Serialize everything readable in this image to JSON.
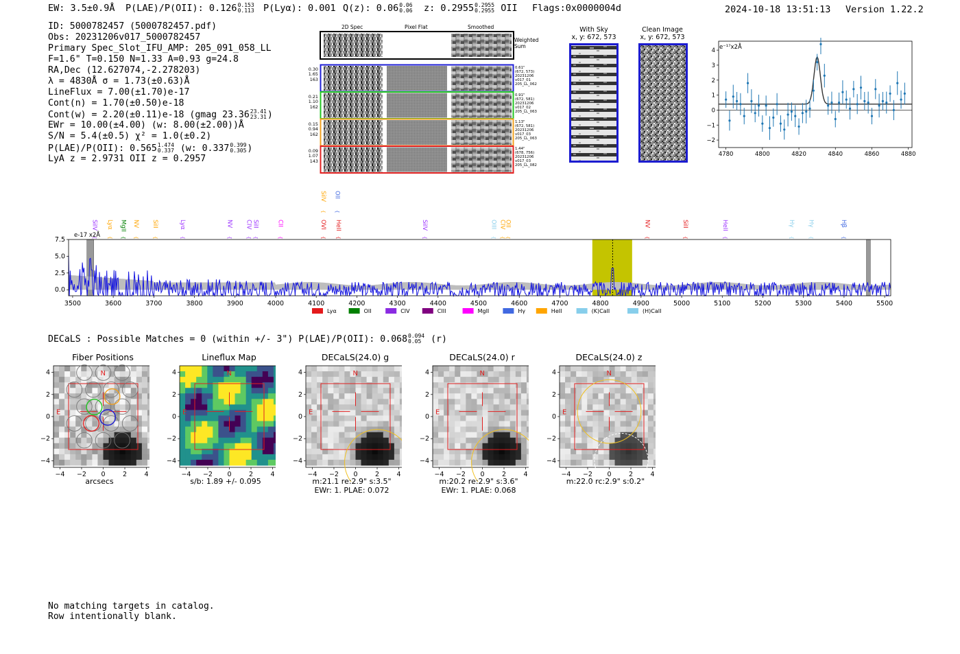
{
  "header": {
    "ew": "EW: 3.5±0.9Å",
    "plae_label": "P(LAE)/P(OII): 0.126",
    "plae_hi": "0.153",
    "plae_lo": "0.113",
    "plya": "P(Lyα): 0.001",
    "qz_label": "Q(z): 0.06",
    "qz_hi": "0.06",
    "qz_lo": "0.06",
    "z_label": "z: 0.2955",
    "z_hi": "0.2955",
    "z_lo": "0.2955",
    "z_line": "OII",
    "flags": "Flags:0x0000004d",
    "datetime": "2024-10-18 13:51:13",
    "version": "Version 1.22.2"
  },
  "info": {
    "id": "ID: 5000782457 (5000782457.pdf)",
    "obs": "Obs: 20231206v017_5000782457",
    "primary": "Primary Spec_Slot_IFU_AMP: 205_091_058_LL",
    "fit": "F=1.6\"  T=0.150  N=1.33  A=0.93  g=24.8",
    "radec": "RA,Dec (12.627074,-2.278203)",
    "lambda": "λ = 4830Å  σ = 1.73(±0.63)Å",
    "lineflux": "LineFlux = 7.00(±1.70)e-17",
    "contn": "Cont(n) = 1.70(±0.50)e-18",
    "contw_main": "Cont(w) = 2.20(±0.11)e-18 (gmag 23.36",
    "contw_hi": "23.41",
    "contw_lo": "23.31",
    "contw_end": ")",
    "ewr": "EWr = 10.00(±4.00) (w: 8.00(±2.00))Å",
    "sn": "S/N = 5.4(±0.5)  χ² = 1.0(±0.2)",
    "plae_main": "P(LAE)/P(OII): 0.565",
    "plae_hi": "1.474",
    "plae_lo": "0.337",
    "plae_w": "(w: 0.337",
    "plae_w_hi": "0.399",
    "plae_w_lo": "0.305",
    "plae_end": ")",
    "lya": "LyA z = 2.9731  OII z = 0.2957"
  },
  "cutouts": {
    "col_titles": [
      "2D Spec",
      "Pixel Flat",
      "Smoothed"
    ],
    "weighted_sum": [
      "Weighted",
      "Sum"
    ],
    "rows": [
      {
        "left": [
          "0.30",
          "1.65",
          "163"
        ],
        "right": [
          "0.61\"",
          "(672, 573)",
          "20231206",
          "v017_01",
          "205_LL_062"
        ],
        "color": "#1f1fd6"
      },
      {
        "left": [
          "0.21",
          "1.10",
          "162"
        ],
        "right": [
          "0.91\"",
          "(672, 581)",
          "20231206",
          "v017_02",
          "205_LL_063"
        ],
        "color": "#22c422"
      },
      {
        "left": [
          "0.15",
          "0.94",
          "162"
        ],
        "right": [
          "1.13\"",
          "(672, 581)",
          "20231206",
          "v017_03",
          "205_LL_063"
        ],
        "color": "#f0a020"
      },
      {
        "left": [
          "0.09",
          "1.07",
          "143"
        ],
        "right": [
          "1.44\"",
          "(678, 756)",
          "20231206",
          "v017_03",
          "205_LL_082"
        ],
        "color": "#e02020"
      }
    ]
  },
  "sky": {
    "with_sky": "With Sky",
    "with_sky_xy": "x, y: 672, 573",
    "clean": "Clean Image",
    "clean_xy": "x, y: 672, 573"
  },
  "zoom_plot": {
    "unit": "e⁻¹⁷x2Å",
    "xticks": [
      "4780",
      "4800",
      "4820",
      "4840",
      "4860",
      "4880"
    ],
    "yticks": [
      "4",
      "3",
      "2",
      "1",
      "0",
      "−1",
      "−2"
    ]
  },
  "chart_data": [
    {
      "type": "scatter",
      "title": "",
      "xlabel": "",
      "ylabel": "e-17 x2Å",
      "xlim": [
        4776,
        4882
      ],
      "ylim": [
        -2.5,
        4.6
      ],
      "x": [
        4780,
        4782,
        4784,
        4786,
        4788,
        4790,
        4792,
        4794,
        4796,
        4798,
        4800,
        4802,
        4804,
        4806,
        4808,
        4810,
        4812,
        4814,
        4816,
        4818,
        4820,
        4822,
        4824,
        4826,
        4828,
        4830,
        4832,
        4834,
        4836,
        4838,
        4840,
        4842,
        4844,
        4846,
        4848,
        4850,
        4852,
        4854,
        4856,
        4858,
        4860,
        4862,
        4864,
        4866,
        4868,
        4870,
        4872,
        4874,
        4876,
        4878
      ],
      "y": [
        0.7,
        -0.7,
        0.9,
        0.6,
        0.4,
        -0.4,
        1.8,
        0.6,
        -0.2,
        0.3,
        -0.9,
        0.3,
        -1.2,
        -0.5,
        0.4,
        -0.9,
        -1.3,
        -0.3,
        -0.1,
        -0.4,
        -1.1,
        -0.2,
        -0.1,
        0.1,
        1.3,
        3.2,
        4.4,
        2.3,
        0.3,
        0.5,
        -0.6,
        0.5,
        1.2,
        0.7,
        0.1,
        1.4,
        0.4,
        1.5,
        0.6,
        0.5,
        -0.4,
        1.4,
        0.3,
        0.6,
        0.5,
        1.1,
        0.0,
        1.8,
        0.7,
        1.1
      ],
      "fit_peak": 3.55,
      "fit_center": 4830,
      "fit_sigma": 1.73,
      "fit_baseline": 0.4
    },
    {
      "type": "line",
      "title": "",
      "ylabel": "e-17 x2Å",
      "xlim": [
        3490,
        5515
      ],
      "ylim": [
        -0.9,
        7.5
      ],
      "xticks": [
        3500,
        3600,
        3700,
        3800,
        3900,
        4000,
        4100,
        4200,
        4300,
        4400,
        4500,
        4600,
        4700,
        4800,
        4900,
        5000,
        5100,
        5200,
        5300,
        5400,
        5500
      ],
      "yticks": [
        "7.5",
        "5.0",
        "2.5",
        "0.0"
      ],
      "highlight_band": [
        4780,
        4878
      ],
      "line_center": 4830,
      "legend": [
        {
          "label": "Lyα",
          "color": "#e41a1c"
        },
        {
          "label": "OII",
          "color": "#008000"
        },
        {
          "label": "CIV",
          "color": "#8a2be2"
        },
        {
          "label": "CIII",
          "color": "#800080"
        },
        {
          "label": "MgII",
          "color": "#ff00ff"
        },
        {
          "label": "Hγ",
          "color": "#4169e1"
        },
        {
          "label": "HeII",
          "color": "#ffa500"
        },
        {
          "label": "(K)CaII",
          "color": "#87ceeb"
        },
        {
          "label": "(H)CaII",
          "color": "#87ceeb"
        }
      ],
      "line_labels": [
        {
          "label": "SiIV",
          "x": 3545,
          "color": "#9b30ff",
          "row": 0
        },
        {
          "label": "Lyα",
          "x": 3583,
          "color": "#ffa500",
          "row": 0
        },
        {
          "label": "MgII",
          "x": 3616,
          "color": "#008000",
          "row": 0
        },
        {
          "label": "NV",
          "x": 3647,
          "color": "#ffa500",
          "row": 0
        },
        {
          "label": "SiII",
          "x": 3694,
          "color": "#ffa500",
          "row": 0
        },
        {
          "label": "Lyα",
          "x": 3762,
          "color": "#9b30ff",
          "row": 0
        },
        {
          "label": "NV",
          "x": 3878,
          "color": "#9b30ff",
          "row": 0
        },
        {
          "label": "CIV",
          "x": 3925,
          "color": "#9b30ff",
          "row": 0
        },
        {
          "label": "SiII",
          "x": 3942,
          "color": "#9b30ff",
          "row": 0
        },
        {
          "label": "CII",
          "x": 4003,
          "color": "#ff00ff",
          "row": 0
        },
        {
          "label": "SiIV",
          "x": 4108,
          "color": "#ffa500",
          "row": 1
        },
        {
          "label": "OII",
          "x": 4143,
          "color": "#4169e1",
          "row": 1
        },
        {
          "label": "OVI",
          "x": 4108,
          "color": "#e41a1c",
          "row": 0
        },
        {
          "label": "HeII",
          "x": 4145,
          "color": "#e41a1c",
          "row": 0
        },
        {
          "label": "SiIV",
          "x": 4358,
          "color": "#9b30ff",
          "row": 0
        },
        {
          "label": "OIII",
          "x": 4528,
          "color": "#87ceeb",
          "row": 0
        },
        {
          "label": "CIV",
          "x": 4550,
          "color": "#ffa500",
          "row": 0
        },
        {
          "label": "OII",
          "x": 4563,
          "color": "#ffa500",
          "row": 0
        },
        {
          "label": "NV",
          "x": 4906,
          "color": "#e41a1c",
          "row": 0
        },
        {
          "label": "SiII",
          "x": 5000,
          "color": "#e41a1c",
          "row": 0
        },
        {
          "label": "HeII",
          "x": 5098,
          "color": "#9b30ff",
          "row": 0
        },
        {
          "label": "Hγ",
          "x": 5262,
          "color": "#87ceeb",
          "row": 0
        },
        {
          "label": "Hγ",
          "x": 5310,
          "color": "#87ceeb",
          "row": 0
        },
        {
          "label": "Hβ",
          "x": 5390,
          "color": "#4169e1",
          "row": 0
        }
      ]
    }
  ],
  "decals": {
    "text": "DECaLS : Possible Matches = 0 (within +/- 3\")  P(LAE)/P(OII): 0.068",
    "hi": "0.094",
    "lo": "0.05",
    "band": "(r)"
  },
  "thumbs": [
    {
      "title": "Fiber Positions",
      "cap1": "arcsecs",
      "cap2": "",
      "kind": "fibers"
    },
    {
      "title": "Lineflux Map",
      "cap1": "s/b: 1.89 +/- 0.095",
      "cap2": "",
      "kind": "lineflux"
    },
    {
      "title": "DECaLS(24.0) g",
      "cap1": "m:21.1  re:2.9\"  s:3.5\"",
      "cap2": "EWr: 1. PLAE: 0.072",
      "kind": "g"
    },
    {
      "title": "DECaLS(24.0) r",
      "cap1": "m:20.2  re:2.9\"  s:3.6\"",
      "cap2": "EWr: 1. PLAE: 0.068",
      "kind": "r"
    },
    {
      "title": "DECaLS(24.0) z",
      "cap1": "m:22.0 rc:2.9\"  s:0.2\"",
      "cap2": "",
      "kind": "z"
    }
  ],
  "thumb_axes": {
    "ticks": [
      "−4",
      "−2",
      "0",
      "2",
      "4"
    ],
    "compass_n": "N",
    "compass_e": "E"
  },
  "footer": {
    "line1": "No matching targets in catalog.",
    "line2": "Row intentionally blank."
  }
}
